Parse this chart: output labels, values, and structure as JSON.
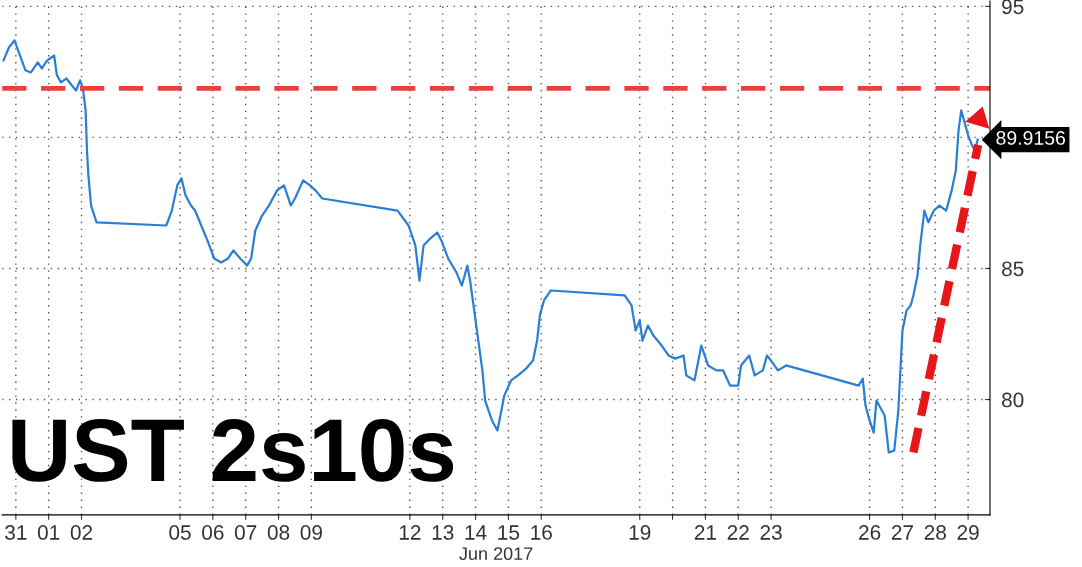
{
  "chart_data": {
    "type": "line",
    "title": "UST 2s10s",
    "xlabel": "Jun 2017",
    "series": [
      {
        "color": "#2a7fd4",
        "x": [
          "2017-05-31T03:00",
          "2017-05-31T07:00",
          "2017-05-31T11:00",
          "2017-05-31T15:00",
          "2017-05-31T19:00",
          "2017-05-31T23:00",
          "2017-06-01T04:00",
          "2017-06-01T07:00",
          "2017-06-01T11:00",
          "2017-06-01T16:00",
          "2017-06-01T18:00",
          "2017-06-01T21:00",
          "2017-06-02T01:00",
          "2017-06-02T05:00",
          "2017-06-02T08:00",
          "2017-06-02T11:00",
          "2017-06-02T13:00",
          "2017-06-02T15:00",
          "2017-06-02T16:00",
          "2017-06-02T17:00",
          "2017-06-02T19:00",
          "2017-06-02T23:00",
          "2017-06-05T02:00",
          "2017-06-05T06:00",
          "2017-06-05T10:00",
          "2017-06-05T13:00",
          "2017-06-05T16:00",
          "2017-06-05T20:00",
          "2017-06-05T23:00",
          "2017-06-06T02:00",
          "2017-06-06T08:00",
          "2017-06-06T13:00",
          "2017-06-06T18:00",
          "2017-06-06T23:00",
          "2017-06-07T03:00",
          "2017-06-07T08:00",
          "2017-06-07T13:00",
          "2017-06-07T16:00",
          "2017-06-07T19:00",
          "2017-06-08T00:00",
          "2017-06-08T05:00",
          "2017-06-08T11:00",
          "2017-06-08T16:00",
          "2017-06-08T21:00",
          "2017-06-09T00:00",
          "2017-06-09T06:00",
          "2017-06-09T11:00",
          "2017-06-09T15:00",
          "2017-06-09T20:00",
          "2017-06-12T03:00",
          "2017-06-12T11:00",
          "2017-06-12T16:00",
          "2017-06-12T19:00",
          "2017-06-12T22:00",
          "2017-06-13T03:00",
          "2017-06-13T08:00",
          "2017-06-13T11:00",
          "2017-06-13T16:00",
          "2017-06-13T22:00",
          "2017-06-14T02:00",
          "2017-06-14T06:00",
          "2017-06-14T08:00",
          "2017-06-14T11:00",
          "2017-06-14T14:00",
          "2017-06-14T17:00",
          "2017-06-14T19:00",
          "2017-06-14T22:00",
          "2017-06-15T00:00",
          "2017-06-15T04:00",
          "2017-06-15T09:00",
          "2017-06-15T14:00",
          "2017-06-15T19:00",
          "2017-06-16T01:00",
          "2017-06-16T06:00",
          "2017-06-16T09:00",
          "2017-06-16T11:00",
          "2017-06-16T14:00",
          "2017-06-16T19:00",
          "2017-06-19T01:00",
          "2017-06-19T06:00",
          "2017-06-19T09:00",
          "2017-06-19T12:00",
          "2017-06-19T14:00",
          "2017-06-19T18:00",
          "2017-06-19T22:00",
          "2017-06-20T04:00",
          "2017-06-20T09:00",
          "2017-06-20T14:00",
          "2017-06-20T20:00",
          "2017-06-20T22:00",
          "2017-06-21T04:00",
          "2017-06-21T09:00",
          "2017-06-21T14:00",
          "2017-06-21T20:00",
          "2017-06-22T01:00",
          "2017-06-22T06:00",
          "2017-06-22T12:00",
          "2017-06-22T14:00",
          "2017-06-22T20:00",
          "2017-06-23T00:00",
          "2017-06-23T06:00",
          "2017-06-23T09:00",
          "2017-06-23T13:00",
          "2017-06-23T17:00",
          "2017-06-23T23:00",
          "2017-06-26T04:00",
          "2017-06-26T07:00",
          "2017-06-26T09:00",
          "2017-06-26T12:00",
          "2017-06-26T15:00",
          "2017-06-26T17:00",
          "2017-06-26T23:00",
          "2017-06-27T02:00",
          "2017-06-27T06:00",
          "2017-06-27T09:00",
          "2017-06-27T12:00",
          "2017-06-27T15:00",
          "2017-06-27T18:00",
          "2017-06-27T20:00",
          "2017-06-27T23:00",
          "2017-06-28T01:00",
          "2017-06-28T04:00",
          "2017-06-28T07:00",
          "2017-06-28T11:00",
          "2017-06-28T15:00",
          "2017-06-28T20:00",
          "2017-06-29T00:00",
          "2017-06-29T03:00",
          "2017-06-29T05:00",
          "2017-06-29T07:00",
          "2017-06-29T10:00",
          "2017-06-29T12:00",
          "2017-06-29T15:00",
          "2017-06-29T17:00",
          "2017-06-29T19:00"
        ],
        "values": [
          92.94,
          93.44,
          93.7,
          93.13,
          92.56,
          92.48,
          92.86,
          92.63,
          92.94,
          93.13,
          92.37,
          92.1,
          92.25,
          91.98,
          91.79,
          92.18,
          91.87,
          91.03,
          89.5,
          88.55,
          87.4,
          86.76,
          86.64,
          87.21,
          88.17,
          88.44,
          87.79,
          87.4,
          87.21,
          86.83,
          86.07,
          85.38,
          85.23,
          85.38,
          85.69,
          85.38,
          85.11,
          85.38,
          86.45,
          87.02,
          87.4,
          87.98,
          88.17,
          87.4,
          87.67,
          88.36,
          88.17,
          87.98,
          87.67,
          87.21,
          86.64,
          85.88,
          84.54,
          85.88,
          86.15,
          86.37,
          86.07,
          85.38,
          84.85,
          84.35,
          85.11,
          84.54,
          83.4,
          82.25,
          81.11,
          79.96,
          79.5,
          79.2,
          78.82,
          80.15,
          80.73,
          80.92,
          81.18,
          81.49,
          82.25,
          83.21,
          83.78,
          84.16,
          83.97,
          83.59,
          82.63,
          83.02,
          82.25,
          82.82,
          82.44,
          82.06,
          81.68,
          81.56,
          81.68,
          80.92,
          80.73,
          82.06,
          81.3,
          81.11,
          81.11,
          80.53,
          80.53,
          81.3,
          81.68,
          80.92,
          81.11,
          81.68,
          81.41,
          81.11,
          81.3,
          80.53,
          80.8,
          79.77,
          79.2,
          78.74,
          79.96,
          79.39,
          77.98,
          78.05,
          79.58,
          82.63,
          83.4,
          83.59,
          83.97,
          84.73,
          85.88,
          87.21,
          86.76,
          87.21,
          87.4,
          87.21,
          87.98,
          88.74,
          90.27,
          91.03,
          90.46,
          90.08,
          89.69,
          89.5,
          89.9156
        ]
      }
    ],
    "xlim": [
      "2017-05-31T02:00",
      "2017-06-30T04:00"
    ],
    "xticks": [
      {
        "value": "2017-05-31T12:00",
        "label": "31"
      },
      {
        "value": "2017-06-01T12:00",
        "label": "01"
      },
      {
        "value": "2017-06-02T12:00",
        "label": "02"
      },
      {
        "value": "2017-06-05T12:00",
        "label": "05"
      },
      {
        "value": "2017-06-06T12:00",
        "label": "06"
      },
      {
        "value": "2017-06-07T12:00",
        "label": "07"
      },
      {
        "value": "2017-06-08T12:00",
        "label": "08"
      },
      {
        "value": "2017-06-09T12:00",
        "label": "09"
      },
      {
        "value": "2017-06-12T12:00",
        "label": "12"
      },
      {
        "value": "2017-06-13T12:00",
        "label": "13"
      },
      {
        "value": "2017-06-14T12:00",
        "label": "14"
      },
      {
        "value": "2017-06-15T12:00",
        "label": "15"
      },
      {
        "value": "2017-06-16T12:00",
        "label": "16"
      },
      {
        "value": "2017-06-19T12:00",
        "label": "19"
      },
      {
        "value": "2017-06-20T12:00",
        "label": null
      },
      {
        "value": "2017-06-21T12:00",
        "label": "21"
      },
      {
        "value": "2017-06-22T12:00",
        "label": "22"
      },
      {
        "value": "2017-06-23T12:00",
        "label": "23"
      },
      {
        "value": "2017-06-26T12:00",
        "label": "26"
      },
      {
        "value": "2017-06-27T12:00",
        "label": "27"
      },
      {
        "value": "2017-06-28T12:00",
        "label": "28"
      },
      {
        "value": "2017-06-29T12:00",
        "label": "29"
      }
    ],
    "ylim": [
      75.6,
      95.2
    ],
    "yticks": [
      80,
      85,
      {
        "value": 90,
        "label": null
      },
      95
    ],
    "ref_lines": [
      {
        "axis": "y",
        "value": 91.87,
        "color": "#e8413c",
        "line_style": "dashed"
      }
    ],
    "annotations": [
      "89.9156"
    ],
    "grid": true,
    "legend": false,
    "marker": "none",
    "line_style": "solid"
  }
}
